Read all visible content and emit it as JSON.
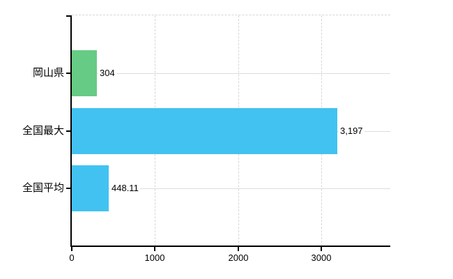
{
  "chart_data": {
    "type": "bar",
    "orientation": "horizontal",
    "title": "",
    "categories": [
      "岡山県",
      "全国最大",
      "全国平均"
    ],
    "values": [
      304,
      3197,
      448.11
    ],
    "value_labels": [
      "304",
      "3,197",
      "448.11"
    ],
    "series": [
      {
        "name": "値",
        "values": [
          304,
          3197,
          448.11
        ]
      }
    ],
    "bar_colors": [
      "#66cb84",
      "#42c2f1",
      "#42c2f1"
    ],
    "x_ticks": [
      0,
      1000,
      2000,
      3000
    ],
    "x_tick_labels": [
      "0",
      "1000",
      "2000",
      "3000"
    ],
    "xlim": [
      0,
      3830
    ],
    "ylabel": "",
    "xlabel": "",
    "legend": "none",
    "grid": {
      "horizontal": "solid",
      "vertical": "dashed",
      "color": "#dcdcdc"
    },
    "colors": {
      "background": "#ffffff",
      "axis": "#000000",
      "text": "#000000",
      "green_bar": "#66cb84",
      "blue_bar": "#42c2f1"
    }
  }
}
